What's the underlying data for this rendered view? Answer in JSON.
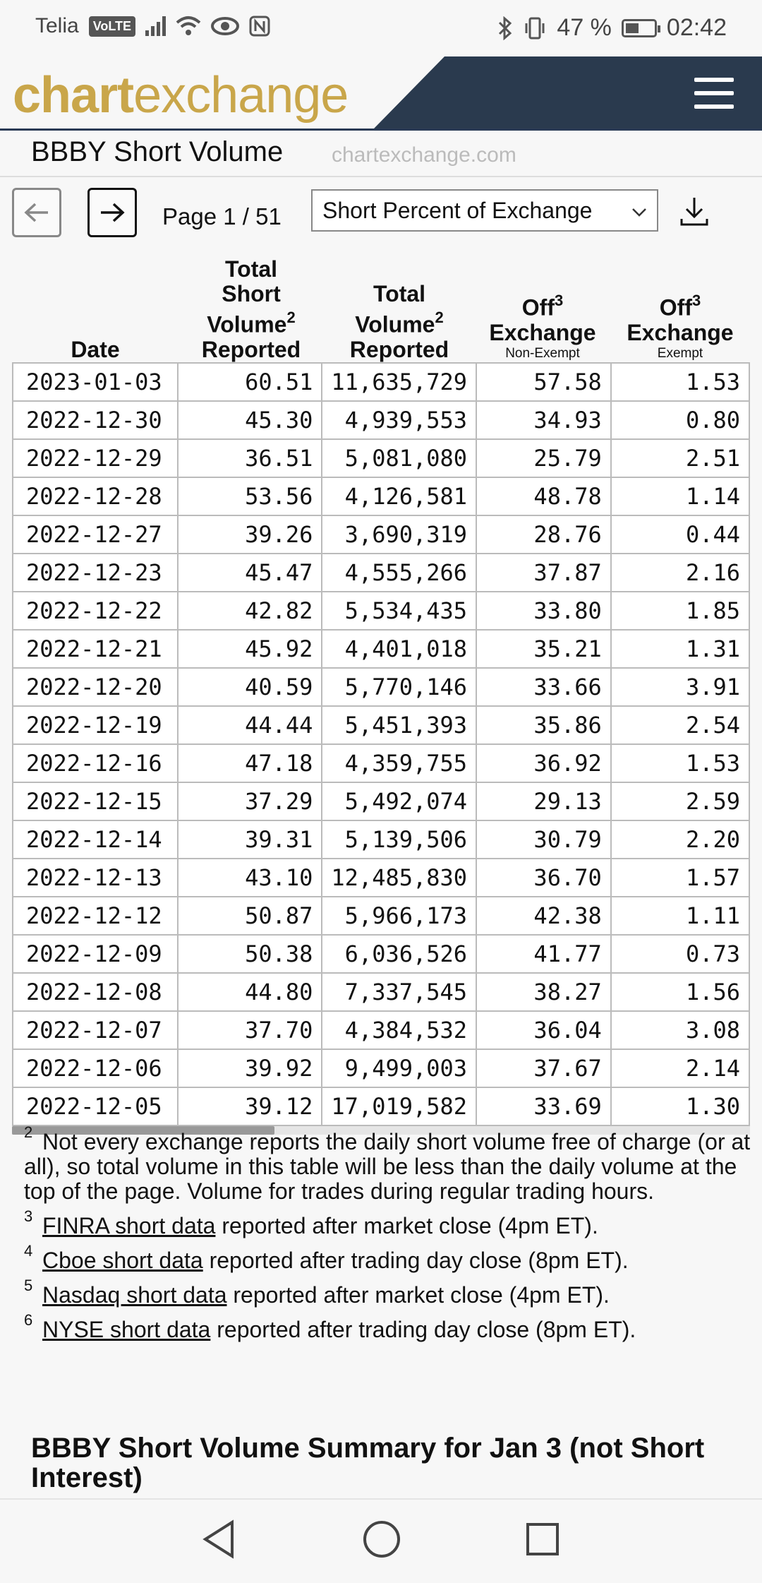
{
  "status_bar": {
    "carrier": "Telia",
    "volte": "VoLTE",
    "battery_percent": "47 %",
    "time": "02:42"
  },
  "header": {
    "logo_bold": "chart",
    "logo_rest": "exchange",
    "logo_color": "#c9a64a",
    "bar_color": "#2a3a4e"
  },
  "title": {
    "text": "BBBY Short Volume",
    "domain": "chartexchange.com"
  },
  "controls": {
    "page_info": "Page 1 / 51",
    "select_value": "Short Percent of Exchange"
  },
  "table": {
    "headers": [
      {
        "label": "Date",
        "sup": "",
        "sub": ""
      },
      {
        "label": "Total Short Volume Reported",
        "sup": "2",
        "sub": ""
      },
      {
        "label": "Total Volume Reported",
        "sup": "2",
        "sub": ""
      },
      {
        "label": "Off Exchange",
        "sup": "3",
        "sub": "Non-Exempt"
      },
      {
        "label": "Off Exchange",
        "sup": "3",
        "sub": "Exempt"
      }
    ],
    "rows": [
      [
        "2023-01-03",
        "60.51",
        "11,635,729",
        "57.58",
        "1.53"
      ],
      [
        "2022-12-30",
        "45.30",
        "4,939,553",
        "34.93",
        "0.80"
      ],
      [
        "2022-12-29",
        "36.51",
        "5,081,080",
        "25.79",
        "2.51"
      ],
      [
        "2022-12-28",
        "53.56",
        "4,126,581",
        "48.78",
        "1.14"
      ],
      [
        "2022-12-27",
        "39.26",
        "3,690,319",
        "28.76",
        "0.44"
      ],
      [
        "2022-12-23",
        "45.47",
        "4,555,266",
        "37.87",
        "2.16"
      ],
      [
        "2022-12-22",
        "42.82",
        "5,534,435",
        "33.80",
        "1.85"
      ],
      [
        "2022-12-21",
        "45.92",
        "4,401,018",
        "35.21",
        "1.31"
      ],
      [
        "2022-12-20",
        "40.59",
        "5,770,146",
        "33.66",
        "3.91"
      ],
      [
        "2022-12-19",
        "44.44",
        "5,451,393",
        "35.86",
        "2.54"
      ],
      [
        "2022-12-16",
        "47.18",
        "4,359,755",
        "36.92",
        "1.53"
      ],
      [
        "2022-12-15",
        "37.29",
        "5,492,074",
        "29.13",
        "2.59"
      ],
      [
        "2022-12-14",
        "39.31",
        "5,139,506",
        "30.79",
        "2.20"
      ],
      [
        "2022-12-13",
        "43.10",
        "12,485,830",
        "36.70",
        "1.57"
      ],
      [
        "2022-12-12",
        "50.87",
        "5,966,173",
        "42.38",
        "1.11"
      ],
      [
        "2022-12-09",
        "50.38",
        "6,036,526",
        "41.77",
        "0.73"
      ],
      [
        "2022-12-08",
        "44.80",
        "7,337,545",
        "38.27",
        "1.56"
      ],
      [
        "2022-12-07",
        "37.70",
        "4,384,532",
        "36.04",
        "3.08"
      ],
      [
        "2022-12-06",
        "39.92",
        "9,499,003",
        "37.67",
        "2.14"
      ],
      [
        "2022-12-05",
        "39.12",
        "17,019,582",
        "33.69",
        "1.30"
      ]
    ]
  },
  "footnotes": {
    "note2_num": "2",
    "note2_text": "Not every exchange reports the daily short volume free of charge (or at all), so total volume in this table will be less than the daily volume at the top of the page. Volume for trades during regular trading hours.",
    "links": [
      {
        "num": "3",
        "link": "FINRA short data",
        "text": " reported after market close (4pm ET)."
      },
      {
        "num": "4",
        "link": "Cboe short data",
        "text": " reported after trading day close (8pm ET)."
      },
      {
        "num": "5",
        "link": "Nasdaq short data",
        "text": " reported after market close (4pm ET)."
      },
      {
        "num": "6",
        "link": "NYSE short data",
        "text": " reported after trading day close (8pm ET)."
      }
    ]
  },
  "summary": {
    "heading": "BBBY Short Volume Summary for Jan 3 (not Short Interest)"
  }
}
